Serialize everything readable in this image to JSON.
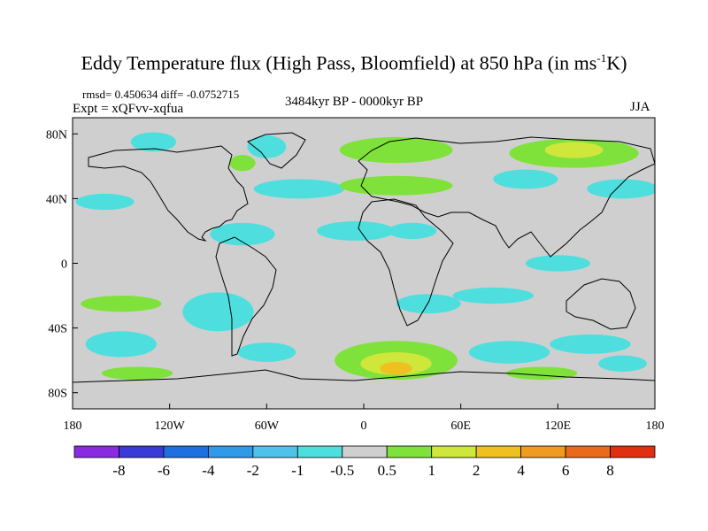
{
  "chart_data": {
    "type": "heatmap",
    "title_main": "Eddy Temperature flux (High Pass, Bloomfield) at 850 hPa (in ms",
    "title_sup": "-1",
    "title_end": "K)",
    "stats_text": "rmsd= 0.450634 diff= -0.0752715",
    "experiment_text": "Expt = xQFvv-xqfua",
    "period_text": "3484kyr BP - 0000kyr BP",
    "season_text": "JJA",
    "x_ticks": [
      "180",
      "120W",
      "60W",
      "0",
      "60E",
      "120E",
      "180"
    ],
    "x_tick_values": [
      -180,
      -120,
      -60,
      0,
      60,
      120,
      180
    ],
    "y_ticks": [
      "80N",
      "40N",
      "0",
      "40S",
      "80S"
    ],
    "y_tick_values": [
      80,
      40,
      0,
      -40,
      -80
    ],
    "xlim": [
      -180,
      180
    ],
    "ylim": [
      -90,
      90
    ],
    "colorbar_labels": [
      "-8",
      "-6",
      "-4",
      "-2",
      "-1",
      "-0.5",
      "0.5",
      "1",
      "2",
      "4",
      "6",
      "8"
    ],
    "colorbar_colors": [
      "#8a2be2",
      "#3a3ad8",
      "#1e6fe0",
      "#2f9ae8",
      "#4fc2ec",
      "#4fdede",
      "#cfcfcf",
      "#7fe23a",
      "#cfe63a",
      "#f0c020",
      "#f09a20",
      "#e86a1a",
      "#e03010"
    ],
    "contours": [
      {
        "lon": -75,
        "lat": 18,
        "rx": 20,
        "ry": 7,
        "level": -1
      },
      {
        "lon": -160,
        "lat": 38,
        "rx": 18,
        "ry": 5,
        "level": -1
      },
      {
        "lon": -40,
        "lat": 46,
        "rx": 28,
        "ry": 6,
        "level": -1
      },
      {
        "lon": -60,
        "lat": 72,
        "rx": 12,
        "ry": 7,
        "level": -1
      },
      {
        "lon": -75,
        "lat": 62,
        "rx": 8,
        "ry": 5,
        "level": 1
      },
      {
        "lon": -130,
        "lat": 75,
        "rx": 14,
        "ry": 6,
        "level": -1
      },
      {
        "lon": 20,
        "lat": 70,
        "rx": 35,
        "ry": 8,
        "level": 1
      },
      {
        "lon": 20,
        "lat": 48,
        "rx": 35,
        "ry": 6,
        "level": 1
      },
      {
        "lon": 130,
        "lat": 68,
        "rx": 40,
        "ry": 9,
        "level": 1
      },
      {
        "lon": 130,
        "lat": 70,
        "rx": 18,
        "ry": 5,
        "level": 2
      },
      {
        "lon": 160,
        "lat": 46,
        "rx": 22,
        "ry": 6,
        "level": -1
      },
      {
        "lon": 100,
        "lat": 52,
        "rx": 20,
        "ry": 6,
        "level": -1
      },
      {
        "lon": -5,
        "lat": 20,
        "rx": 24,
        "ry": 6,
        "level": -1
      },
      {
        "lon": 30,
        "lat": 20,
        "rx": 15,
        "ry": 5,
        "level": -1
      },
      {
        "lon": 120,
        "lat": 0,
        "rx": 20,
        "ry": 5,
        "level": -1
      },
      {
        "lon": -150,
        "lat": -25,
        "rx": 25,
        "ry": 5,
        "level": 1
      },
      {
        "lon": -90,
        "lat": -30,
        "rx": 22,
        "ry": 12,
        "level": -1
      },
      {
        "lon": 40,
        "lat": -25,
        "rx": 20,
        "ry": 6,
        "level": -1
      },
      {
        "lon": 80,
        "lat": -20,
        "rx": 25,
        "ry": 5,
        "level": -1
      },
      {
        "lon": -150,
        "lat": -50,
        "rx": 22,
        "ry": 8,
        "level": -1
      },
      {
        "lon": -60,
        "lat": -55,
        "rx": 18,
        "ry": 6,
        "level": -1
      },
      {
        "lon": 20,
        "lat": -60,
        "rx": 38,
        "ry": 12,
        "level": 1
      },
      {
        "lon": 20,
        "lat": -62,
        "rx": 22,
        "ry": 7,
        "level": 2
      },
      {
        "lon": 20,
        "lat": -65,
        "rx": 10,
        "ry": 4,
        "level": 4
      },
      {
        "lon": 90,
        "lat": -55,
        "rx": 25,
        "ry": 7,
        "level": -1
      },
      {
        "lon": 140,
        "lat": -50,
        "rx": 25,
        "ry": 6,
        "level": -1
      },
      {
        "lon": -140,
        "lat": -68,
        "rx": 22,
        "ry": 4,
        "level": 1
      },
      {
        "lon": 110,
        "lat": -68,
        "rx": 22,
        "ry": 4,
        "level": 1
      },
      {
        "lon": 160,
        "lat": -62,
        "rx": 15,
        "ry": 5,
        "level": -1
      }
    ]
  }
}
